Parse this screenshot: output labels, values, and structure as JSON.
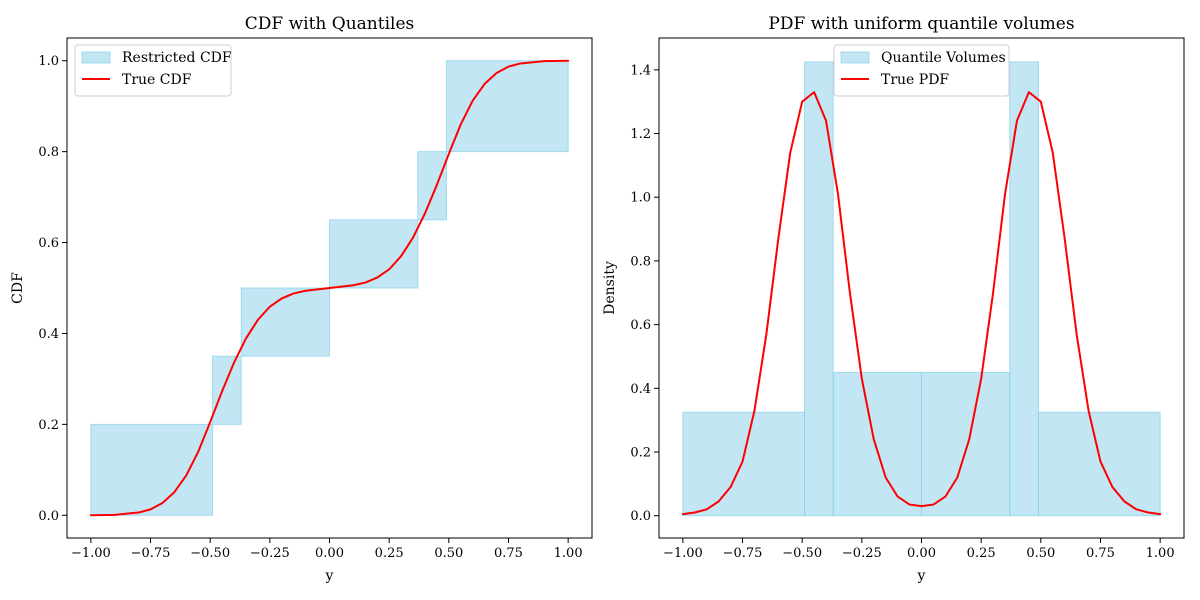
{
  "chart_data": [
    {
      "type": "area",
      "title": "CDF with Quantiles",
      "xlabel": "y",
      "ylabel": "CDF",
      "xlim": [
        -1.1,
        1.1
      ],
      "ylim": [
        -0.05,
        1.05
      ],
      "xticks": [
        -1.0,
        -0.75,
        -0.5,
        -0.25,
        0.0,
        0.25,
        0.5,
        0.75,
        1.0
      ],
      "xtick_labels": [
        "−1.00",
        "−0.75",
        "−0.50",
        "−0.25",
        "0.00",
        "0.25",
        "0.50",
        "0.75",
        "1.00"
      ],
      "yticks": [
        0.0,
        0.2,
        0.4,
        0.6,
        0.8,
        1.0
      ],
      "ytick_labels": [
        "0.0",
        "0.2",
        "0.4",
        "0.6",
        "0.8",
        "1.0"
      ],
      "legend_position": "top-left",
      "boxes": {
        "name": "Restricted CDF",
        "color": "#87ceeb",
        "items": [
          {
            "x0": -1.0,
            "x1": -0.49,
            "y0": 0.0,
            "y1": 0.2
          },
          {
            "x0": -0.49,
            "x1": -0.37,
            "y0": 0.2,
            "y1": 0.35
          },
          {
            "x0": -0.37,
            "x1": 0.0,
            "y0": 0.35,
            "y1": 0.5
          },
          {
            "x0": 0.0,
            "x1": 0.37,
            "y0": 0.5,
            "y1": 0.65
          },
          {
            "x0": 0.37,
            "x1": 0.49,
            "y0": 0.65,
            "y1": 0.8
          },
          {
            "x0": 0.49,
            "x1": 1.0,
            "y0": 0.8,
            "y1": 1.0
          }
        ]
      },
      "line": {
        "name": "True CDF",
        "color": "#ff0000",
        "x": [
          -1.0,
          -0.9,
          -0.8,
          -0.75,
          -0.7,
          -0.65,
          -0.6,
          -0.55,
          -0.5,
          -0.45,
          -0.4,
          -0.35,
          -0.3,
          -0.25,
          -0.2,
          -0.15,
          -0.1,
          -0.05,
          0.0,
          0.05,
          0.1,
          0.15,
          0.2,
          0.25,
          0.3,
          0.35,
          0.4,
          0.45,
          0.5,
          0.55,
          0.6,
          0.65,
          0.7,
          0.75,
          0.8,
          0.9,
          1.0
        ],
        "y": [
          0.0,
          0.001,
          0.006,
          0.013,
          0.027,
          0.051,
          0.088,
          0.14,
          0.205,
          0.273,
          0.336,
          0.389,
          0.43,
          0.459,
          0.477,
          0.488,
          0.494,
          0.497,
          0.5,
          0.503,
          0.506,
          0.512,
          0.523,
          0.541,
          0.57,
          0.611,
          0.664,
          0.727,
          0.795,
          0.86,
          0.912,
          0.949,
          0.973,
          0.987,
          0.994,
          0.999,
          1.0
        ]
      }
    },
    {
      "type": "bar",
      "title": "PDF with uniform quantile volumes",
      "xlabel": "y",
      "ylabel": "Density",
      "xlim": [
        -1.1,
        1.1
      ],
      "ylim": [
        -0.07,
        1.5
      ],
      "xticks": [
        -1.0,
        -0.75,
        -0.5,
        -0.25,
        0.0,
        0.25,
        0.5,
        0.75,
        1.0
      ],
      "xtick_labels": [
        "−1.00",
        "−0.75",
        "−0.50",
        "−0.25",
        "0.00",
        "0.25",
        "0.50",
        "0.75",
        "1.00"
      ],
      "yticks": [
        0.0,
        0.2,
        0.4,
        0.6,
        0.8,
        1.0,
        1.2,
        1.4
      ],
      "ytick_labels": [
        "0.0",
        "0.2",
        "0.4",
        "0.6",
        "0.8",
        "1.0",
        "1.2",
        "1.4"
      ],
      "legend_position": "top-center",
      "boxes": {
        "name": "Quantile Volumes",
        "color": "#87ceeb",
        "items": [
          {
            "x0": -1.0,
            "x1": -0.49,
            "y0": 0.0,
            "y1": 0.325
          },
          {
            "x0": -0.49,
            "x1": -0.37,
            "y0": 0.0,
            "y1": 1.425
          },
          {
            "x0": -0.37,
            "x1": 0.0,
            "y0": 0.0,
            "y1": 0.45
          },
          {
            "x0": 0.0,
            "x1": 0.37,
            "y0": 0.0,
            "y1": 0.45
          },
          {
            "x0": 0.37,
            "x1": 0.49,
            "y0": 0.0,
            "y1": 1.425
          },
          {
            "x0": 0.49,
            "x1": 1.0,
            "y0": 0.0,
            "y1": 0.325
          }
        ]
      },
      "line": {
        "name": "True PDF",
        "color": "#ff0000",
        "x": [
          -1.0,
          -0.95,
          -0.9,
          -0.85,
          -0.8,
          -0.75,
          -0.7,
          -0.65,
          -0.6,
          -0.55,
          -0.5,
          -0.45,
          -0.4,
          -0.35,
          -0.3,
          -0.25,
          -0.2,
          -0.15,
          -0.1,
          -0.05,
          0.0,
          0.05,
          0.1,
          0.15,
          0.2,
          0.25,
          0.3,
          0.35,
          0.4,
          0.45,
          0.5,
          0.55,
          0.6,
          0.65,
          0.7,
          0.75,
          0.8,
          0.85,
          0.9,
          0.95,
          1.0
        ],
        "y": [
          0.005,
          0.01,
          0.02,
          0.045,
          0.09,
          0.17,
          0.33,
          0.57,
          0.87,
          1.14,
          1.3,
          1.33,
          1.24,
          1.01,
          0.7,
          0.43,
          0.24,
          0.12,
          0.06,
          0.035,
          0.03,
          0.035,
          0.06,
          0.12,
          0.24,
          0.43,
          0.7,
          1.01,
          1.24,
          1.33,
          1.3,
          1.14,
          0.87,
          0.57,
          0.33,
          0.17,
          0.09,
          0.045,
          0.02,
          0.01,
          0.005
        ]
      }
    }
  ]
}
